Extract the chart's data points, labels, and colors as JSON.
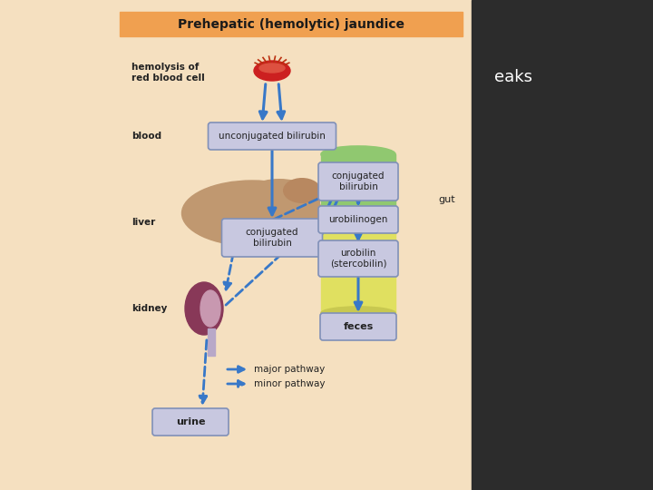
{
  "title": "Prehepatic (hemolytic) jaundice",
  "title_bg": "#F0A050",
  "bg_color": "#F5E0C0",
  "right_panel_bg": "#2C2C2C",
  "box_bg": "#C8C8E0",
  "box_border": "#8090B8",
  "arrow_color": "#3878C8",
  "gut_green": "#90C870",
  "gut_yellow": "#E0E060",
  "liver_color": "#C09870",
  "kidney_color": "#883858",
  "kidney_inner": "#C898B0",
  "rbc_color": "#CC2020",
  "rbc_inner": "#DD5040",
  "text_color": "#222222",
  "side_text": "eaks",
  "labels": {
    "hemolysis": "hemolysis of\nred blood cell",
    "blood": "blood",
    "liver": "liver",
    "kidney": "kidney",
    "gut": "gut",
    "unconjugated": "unconjugated bilirubin",
    "conjugated_liver": "conjugated\nbilirubin",
    "conjugated_gut": "conjugated\nbilirubin",
    "urobilinogen": "urobilinogen",
    "urobilin": "urobilin\n(stercobilin)",
    "urine": "urine",
    "feces": "feces",
    "major": "major pathway",
    "minor": "minor pathway"
  }
}
